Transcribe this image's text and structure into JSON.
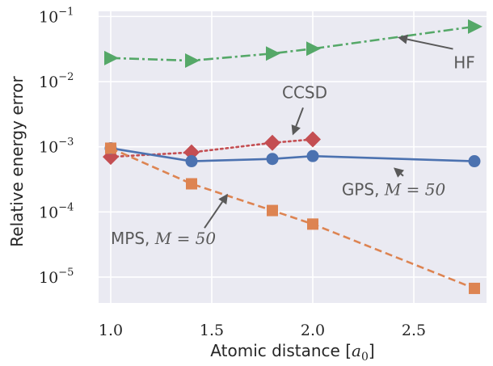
{
  "chart_data": {
    "type": "line",
    "xlabel": "Atomic distance [a0]",
    "ylabel": "Relative energy error",
    "yscale": "log",
    "xlim": [
      0.94,
      2.86
    ],
    "ylim": [
      4e-06,
      0.12
    ],
    "grid": true,
    "x_ticks": [
      1.0,
      1.5,
      2.0,
      2.5
    ],
    "x_tick_labels": [
      "1.0",
      "1.5",
      "2.0",
      "2.5"
    ],
    "y_ticks": [
      1e-05,
      0.0001,
      0.001,
      0.01,
      0.1
    ],
    "y_tick_labels": [
      {
        "base": "10",
        "exp": "−5"
      },
      {
        "base": "10",
        "exp": "−4"
      },
      {
        "base": "10",
        "exp": "−3"
      },
      {
        "base": "10",
        "exp": "−2"
      },
      {
        "base": "10",
        "exp": "−1"
      }
    ],
    "series": [
      {
        "id": "hf",
        "x": [
          1.0,
          1.4,
          1.8,
          2.0,
          2.8
        ],
        "y": [
          0.023,
          0.021,
          0.027,
          0.032,
          0.07
        ],
        "color": "#55a868",
        "marker": "triangle-right",
        "linestyle": "dashdot"
      },
      {
        "id": "ccsd",
        "x": [
          1.0,
          1.4,
          1.8,
          2.0
        ],
        "y": [
          0.0007,
          0.00082,
          0.00115,
          0.0013
        ],
        "color": "#c44e52",
        "marker": "diamond",
        "linestyle": "dotted"
      },
      {
        "id": "gps",
        "x": [
          1.0,
          1.4,
          1.8,
          2.0,
          2.8
        ],
        "y": [
          0.00095,
          0.0006,
          0.00065,
          0.00072,
          0.0006
        ],
        "color": "#4c72b0",
        "marker": "circle",
        "linestyle": "solid"
      },
      {
        "id": "mps",
        "x": [
          1.0,
          1.4,
          1.8,
          2.0,
          2.8
        ],
        "y": [
          0.00095,
          0.00027,
          0.000105,
          6.5e-05,
          6.7e-06
        ],
        "color": "#dd8452",
        "marker": "square",
        "linestyle": "dashed"
      }
    ],
    "annotations": [
      {
        "id": "hf",
        "text": "HF",
        "text_x": 2.75,
        "text_y": 0.016,
        "point_x": 2.42,
        "point_y": 0.048
      },
      {
        "id": "ccsd",
        "text": "CCSD",
        "text_x": 1.96,
        "text_y": 0.0056,
        "point_x": 1.9,
        "point_y": 0.0015
      },
      {
        "id": "gps",
        "text": "GPS, ",
        "math": "M = 50",
        "text_x": 2.4,
        "text_y": 0.00018,
        "point_x": 2.4,
        "point_y": 0.00048
      },
      {
        "id": "mps",
        "text": "MPS, ",
        "math": "M = 50",
        "text_x": 1.0,
        "text_y": 3.2e-05,
        "point_x": 1.58,
        "point_y": 0.00019
      }
    ]
  }
}
